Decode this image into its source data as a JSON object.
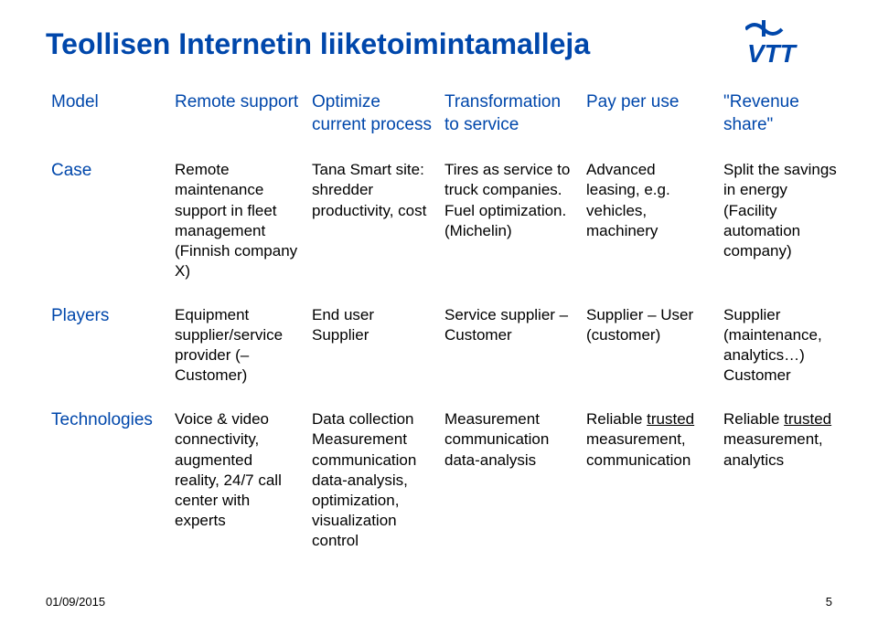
{
  "title": "Teollisen Internetin liiketoimintamalleja",
  "logo": {
    "text": "VTT",
    "primary_color": "#0047ab",
    "wave_color": "#0047ab"
  },
  "columns": [
    "Model",
    "Remote support",
    "Optimize current process",
    "Transformation to service",
    "Pay per use",
    "\"Revenue share\""
  ],
  "rows": [
    {
      "label": "Case",
      "cells": [
        "Remote maintenance support in fleet management (Finnish company X)",
        "Tana Smart site: shredder productivity, cost",
        "Tires as service to truck companies. Fuel optimization. (Michelin)",
        "Advanced leasing, e.g. vehicles, machinery",
        "Split the savings in energy (Facility automation company)"
      ]
    },
    {
      "label": "Players",
      "cells": [
        "Equipment supplier/service provider (–Customer)",
        "End user Supplier",
        "Service supplier – Customer",
        "Supplier – User (customer)",
        "Supplier (maintenance, analytics…) Customer"
      ]
    },
    {
      "label": "Technologies",
      "cells_html": [
        "Voice & video connectivity, augmented reality, 24/7 call center with experts",
        "Data collection Measurement communication data-analysis, optimization, visualization control",
        "Measurement communication data-analysis",
        "Reliable <span class=\"underline\">trusted</span> measurement, communication",
        "Reliable <span class=\"underline\">trusted</span> measurement, analytics"
      ]
    }
  ],
  "footer": {
    "date": "01/09/2015",
    "page": "5"
  },
  "styling": {
    "title_color": "#0047ab",
    "header_color": "#0047ab",
    "body_text_color": "#000000",
    "background_color": "#ffffff",
    "title_fontsize": 32,
    "header_fontsize": 19,
    "cell_fontsize": 17,
    "footer_fontsize": 13
  }
}
